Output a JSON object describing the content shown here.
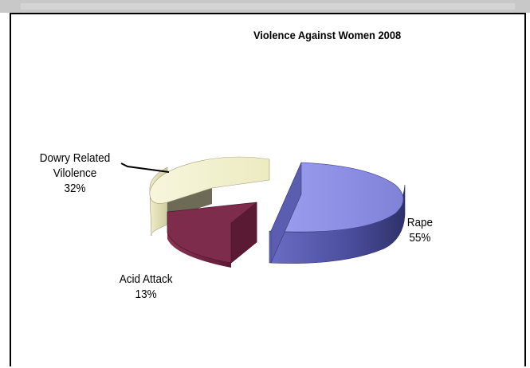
{
  "chart_data": {
    "type": "pie",
    "style": "3d-exploded",
    "title": "Violence Against Women 2008",
    "slices": [
      {
        "name": "Rape",
        "value": 55,
        "label": "55%",
        "color": "#8e90e4",
        "side_color": "#4a4d9c"
      },
      {
        "name": "Acid Attack",
        "value": 13,
        "label": "13%",
        "color": "#7e2c4b",
        "side_color": "#4f1730"
      },
      {
        "name": "Dowry Related Vilolence",
        "value": 32,
        "label": "32%",
        "color": "#f1efc8",
        "side_color": "#c9c6a0"
      }
    ],
    "legend": "none"
  }
}
